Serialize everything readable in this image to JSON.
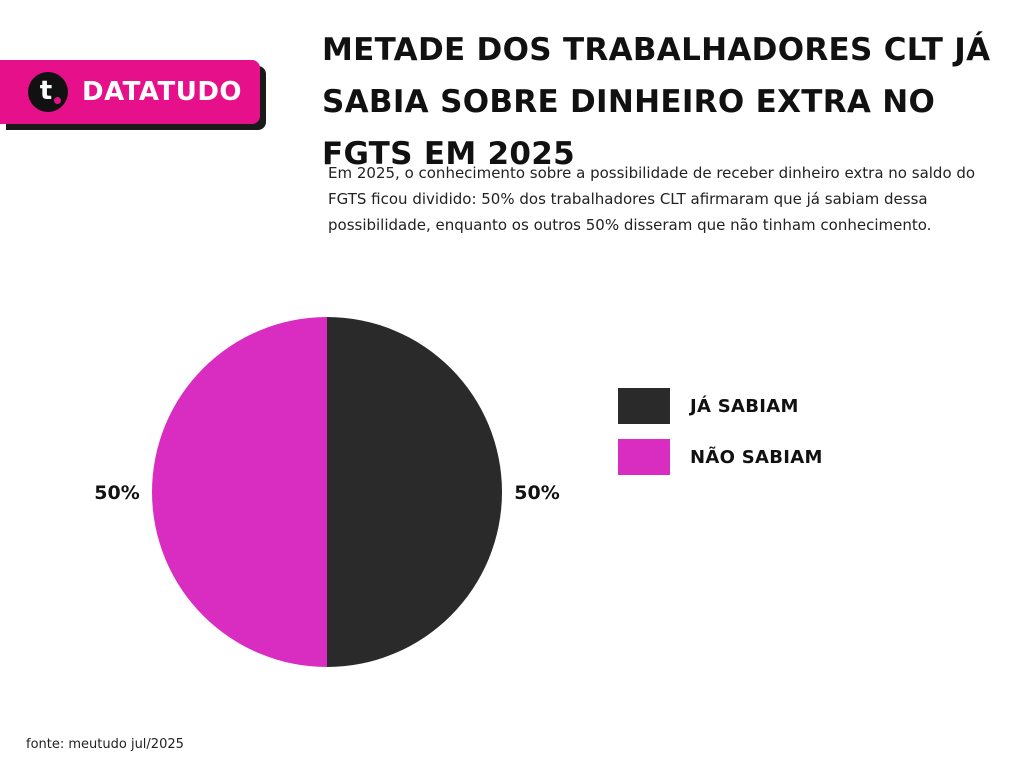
{
  "brand": {
    "logo_letter": "t",
    "name": "DATATUDO",
    "color": "#e6118a"
  },
  "title": "METADE DOS TRABALHADORES CLT JÁ SABIA SOBRE DINHEIRO EXTRA NO FGTS EM 2025",
  "subtitle": "Em 2025, o conhecimento sobre a possibilidade de receber dinheiro extra no saldo do FGTS ficou dividido: 50% dos trabalhadores CLT afirmaram que já sabiam dessa possibilidade, enquanto os outros 50% disseram que não tinham conhecimento.",
  "source": "fonte: meutudo jul/2025",
  "chart_data": {
    "type": "pie",
    "slices": [
      {
        "label": "JÁ SABIAM",
        "value": 50,
        "display": "50%",
        "color": "#2a2a2a"
      },
      {
        "label": "NÃO SABIAM",
        "value": 50,
        "display": "50%",
        "color": "#d92cc0"
      }
    ],
    "legend_position": "right"
  }
}
